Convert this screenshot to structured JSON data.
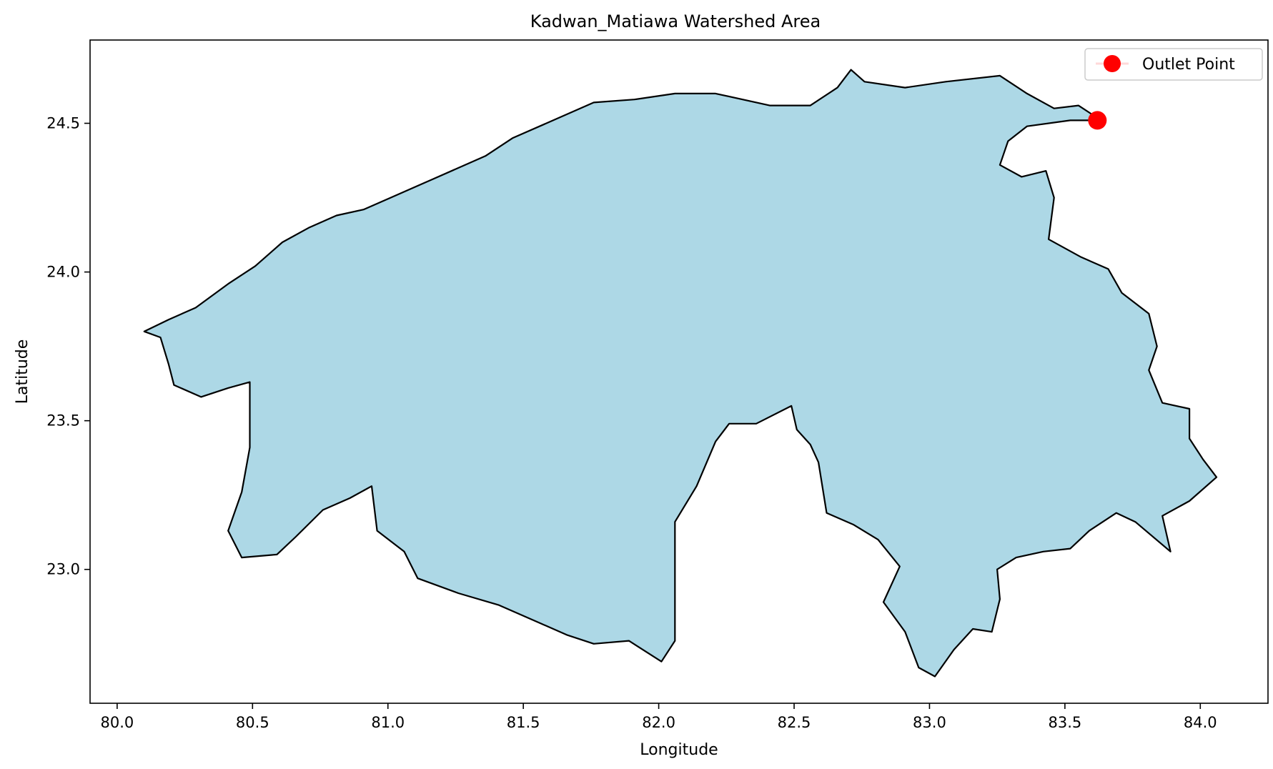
{
  "chart_data": {
    "type": "map",
    "title": "Kadwan_Matiawa Watershed Area",
    "xlabel": "Longitude",
    "ylabel": "Latitude",
    "xlim": [
      79.9,
      84.25
    ],
    "ylim": [
      22.55,
      24.78
    ],
    "xticks": [
      80.0,
      80.5,
      81.0,
      81.5,
      82.0,
      82.5,
      83.0,
      83.5,
      84.0
    ],
    "xtick_labels": [
      "80.0",
      "80.5",
      "81.0",
      "81.5",
      "82.0",
      "82.5",
      "83.0",
      "83.5",
      "84.0"
    ],
    "yticks": [
      23.0,
      23.5,
      24.0,
      24.5
    ],
    "ytick_labels": [
      "23.0",
      "23.5",
      "24.0",
      "24.5"
    ],
    "grid": false,
    "legend_position": "top-right",
    "watershed": {
      "fill_color": "#add8e6",
      "edge_color": "#000000",
      "boundary": [
        [
          80.1,
          23.8
        ],
        [
          80.19,
          23.84
        ],
        [
          80.29,
          23.88
        ],
        [
          80.41,
          23.96
        ],
        [
          80.51,
          24.02
        ],
        [
          80.61,
          24.1
        ],
        [
          80.71,
          24.15
        ],
        [
          80.81,
          24.19
        ],
        [
          80.91,
          24.21
        ],
        [
          81.01,
          24.25
        ],
        [
          81.16,
          24.31
        ],
        [
          81.36,
          24.39
        ],
        [
          81.46,
          24.45
        ],
        [
          81.61,
          24.51
        ],
        [
          81.76,
          24.57
        ],
        [
          81.91,
          24.58
        ],
        [
          82.06,
          24.6
        ],
        [
          82.21,
          24.6
        ],
        [
          82.41,
          24.56
        ],
        [
          82.56,
          24.56
        ],
        [
          82.66,
          24.62
        ],
        [
          82.71,
          24.68
        ],
        [
          82.76,
          24.64
        ],
        [
          82.91,
          24.62
        ],
        [
          83.06,
          24.64
        ],
        [
          83.26,
          24.66
        ],
        [
          83.36,
          24.6
        ],
        [
          83.46,
          24.55
        ],
        [
          83.55,
          24.56
        ],
        [
          83.6,
          24.53
        ],
        [
          83.62,
          24.51
        ],
        [
          83.52,
          24.51
        ],
        [
          83.36,
          24.49
        ],
        [
          83.29,
          24.44
        ],
        [
          83.26,
          24.36
        ],
        [
          83.34,
          24.32
        ],
        [
          83.43,
          24.34
        ],
        [
          83.46,
          24.25
        ],
        [
          83.44,
          24.11
        ],
        [
          83.56,
          24.05
        ],
        [
          83.66,
          24.01
        ],
        [
          83.71,
          23.93
        ],
        [
          83.81,
          23.86
        ],
        [
          83.84,
          23.75
        ],
        [
          83.81,
          23.67
        ],
        [
          83.86,
          23.56
        ],
        [
          83.96,
          23.54
        ],
        [
          83.96,
          23.44
        ],
        [
          84.01,
          23.37
        ],
        [
          84.06,
          23.31
        ],
        [
          83.96,
          23.23
        ],
        [
          83.86,
          23.18
        ],
        [
          83.89,
          23.06
        ],
        [
          83.76,
          23.16
        ],
        [
          83.69,
          23.19
        ],
        [
          83.59,
          23.13
        ],
        [
          83.52,
          23.07
        ],
        [
          83.42,
          23.06
        ],
        [
          83.32,
          23.04
        ],
        [
          83.25,
          23.0
        ],
        [
          83.26,
          22.9
        ],
        [
          83.23,
          22.79
        ],
        [
          83.16,
          22.8
        ],
        [
          83.09,
          22.73
        ],
        [
          83.02,
          22.64
        ],
        [
          82.96,
          22.67
        ],
        [
          82.91,
          22.79
        ],
        [
          82.83,
          22.89
        ],
        [
          82.89,
          23.01
        ],
        [
          82.81,
          23.1
        ],
        [
          82.72,
          23.15
        ],
        [
          82.62,
          23.19
        ],
        [
          82.59,
          23.36
        ],
        [
          82.56,
          23.42
        ],
        [
          82.51,
          23.47
        ],
        [
          82.49,
          23.55
        ],
        [
          82.36,
          23.49
        ],
        [
          82.26,
          23.49
        ],
        [
          82.21,
          23.43
        ],
        [
          82.14,
          23.28
        ],
        [
          82.06,
          23.16
        ],
        [
          82.06,
          22.96
        ],
        [
          82.06,
          22.76
        ],
        [
          82.01,
          22.69
        ],
        [
          81.89,
          22.76
        ],
        [
          81.76,
          22.75
        ],
        [
          81.66,
          22.78
        ],
        [
          81.56,
          22.82
        ],
        [
          81.41,
          22.88
        ],
        [
          81.26,
          22.92
        ],
        [
          81.11,
          22.97
        ],
        [
          81.06,
          23.06
        ],
        [
          80.96,
          23.13
        ],
        [
          80.94,
          23.28
        ],
        [
          80.86,
          23.24
        ],
        [
          80.76,
          23.2
        ],
        [
          80.66,
          23.11
        ],
        [
          80.59,
          23.05
        ],
        [
          80.46,
          23.04
        ],
        [
          80.41,
          23.13
        ],
        [
          80.46,
          23.26
        ],
        [
          80.49,
          23.41
        ],
        [
          80.49,
          23.63
        ],
        [
          80.41,
          23.61
        ],
        [
          80.31,
          23.58
        ],
        [
          80.21,
          23.62
        ],
        [
          80.19,
          23.69
        ],
        [
          80.16,
          23.78
        ],
        [
          80.1,
          23.8
        ]
      ]
    },
    "outlet_point": {
      "label": "Outlet Point",
      "lon": 83.62,
      "lat": 24.51,
      "color": "#ff0000"
    }
  }
}
